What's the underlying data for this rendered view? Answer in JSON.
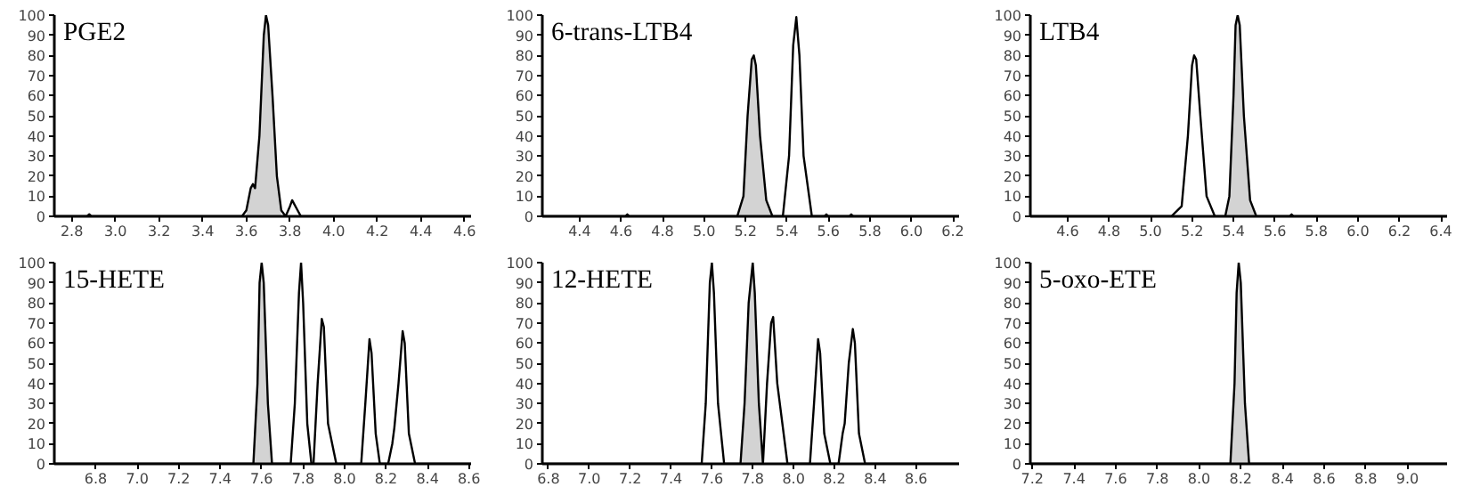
{
  "chart_data": [
    {
      "type": "line",
      "title": "PGE2",
      "xlim": [
        2.72,
        4.63
      ],
      "ylim": [
        0,
        100
      ],
      "grid": false,
      "marker": "none",
      "xticks": [
        2.8,
        {
          "value": 3,
          "label": "3.0"
        },
        3.2,
        3.4,
        3.6,
        3.8,
        {
          "value": 4,
          "label": "4.0"
        },
        4.2,
        4.4,
        4.6
      ],
      "yticks": [
        0,
        10,
        20,
        30,
        40,
        50,
        60,
        70,
        80,
        90,
        100
      ],
      "series": [
        {
          "type": "area",
          "color": "#d3d3d3",
          "x": [
            3.6,
            3.62,
            3.63,
            3.64,
            3.66,
            3.68,
            3.69,
            3.7,
            3.72,
            3.74,
            3.76
          ],
          "values": [
            3,
            14,
            16,
            14,
            40,
            90,
            100,
            95,
            60,
            20,
            3
          ]
        },
        {
          "color": "#000000",
          "x": [
            2.72,
            2.87,
            2.88,
            2.89,
            3.58,
            3.6,
            3.62,
            3.63,
            3.64,
            3.66,
            3.68,
            3.69,
            3.7,
            3.72,
            3.74,
            3.76,
            3.78,
            3.8,
            3.81,
            3.83,
            3.85,
            4.63
          ],
          "values": [
            0,
            0,
            1,
            0,
            0,
            3,
            14,
            16,
            14,
            40,
            90,
            100,
            95,
            60,
            20,
            3,
            0,
            5,
            8,
            4,
            0,
            0
          ]
        }
      ]
    },
    {
      "type": "line",
      "title": "6-trans-LTB4",
      "xlim": [
        4.22,
        6.23
      ],
      "ylim": [
        0,
        100
      ],
      "grid": false,
      "marker": "none",
      "xticks": [
        4.4,
        4.6,
        4.8,
        {
          "value": 5,
          "label": "5.0"
        },
        5.2,
        5.4,
        5.6,
        5.8,
        {
          "value": 6,
          "label": "6.0"
        },
        6.2
      ],
      "yticks": [
        0,
        10,
        20,
        30,
        40,
        50,
        60,
        70,
        80,
        90,
        100
      ],
      "series": [
        {
          "type": "area",
          "color": "#d3d3d3",
          "x": [
            5.16,
            5.19,
            5.21,
            5.23,
            5.24,
            5.25,
            5.27,
            5.3,
            5.33
          ],
          "values": [
            0,
            10,
            50,
            78,
            80,
            75,
            40,
            8,
            0
          ]
        },
        {
          "color": "#000000",
          "x": [
            4.22,
            4.62,
            4.63,
            4.64,
            5.16,
            5.19,
            5.21,
            5.23,
            5.24,
            5.25,
            5.27,
            5.3,
            5.33,
            5.38,
            5.41,
            5.43,
            5.445,
            5.46,
            5.48,
            5.52,
            5.58,
            5.59,
            5.6,
            5.7,
            5.71,
            5.72,
            6.23
          ],
          "values": [
            0,
            0,
            1,
            0,
            0,
            10,
            50,
            78,
            80,
            75,
            40,
            8,
            0,
            0,
            30,
            85,
            99,
            80,
            30,
            0,
            0,
            1,
            0,
            0,
            1,
            0,
            0
          ]
        }
      ]
    },
    {
      "type": "line",
      "title": "LTB4",
      "xlim": [
        4.42,
        6.43
      ],
      "ylim": [
        0,
        100
      ],
      "grid": false,
      "marker": "none",
      "xticks": [
        4.6,
        4.8,
        {
          "value": 5,
          "label": "5.0"
        },
        5.2,
        5.4,
        5.6,
        5.8,
        {
          "value": 6,
          "label": "6.0"
        },
        6.2,
        6.4
      ],
      "yticks": [
        0,
        10,
        20,
        30,
        40,
        50,
        60,
        70,
        80,
        90,
        100
      ],
      "series": [
        {
          "type": "area",
          "color": "#d3d3d3",
          "x": [
            5.36,
            5.38,
            5.4,
            5.41,
            5.42,
            5.43,
            5.45,
            5.48,
            5.51
          ],
          "values": [
            0,
            10,
            60,
            95,
            100,
            95,
            50,
            8,
            0
          ]
        },
        {
          "color": "#000000",
          "x": [
            4.42,
            5.1,
            5.15,
            5.18,
            5.2,
            5.21,
            5.22,
            5.24,
            5.27,
            5.31,
            5.36,
            5.38,
            5.4,
            5.41,
            5.42,
            5.43,
            5.45,
            5.48,
            5.51,
            5.67,
            5.68,
            5.69,
            6.43
          ],
          "values": [
            0,
            0,
            5,
            40,
            75,
            80,
            78,
            50,
            10,
            0,
            0,
            10,
            60,
            95,
            100,
            95,
            50,
            8,
            0,
            0,
            1,
            0,
            0
          ]
        }
      ]
    },
    {
      "type": "line",
      "title": "15-HETE",
      "xlim": [
        6.6,
        8.61
      ],
      "ylim": [
        0,
        100
      ],
      "grid": false,
      "marker": "none",
      "xticks": [
        6.8,
        {
          "value": 7,
          "label": "7.0"
        },
        7.2,
        7.4,
        7.6,
        7.8,
        {
          "value": 8,
          "label": "8.0"
        },
        8.2,
        8.4,
        8.6
      ],
      "yticks": [
        0,
        10,
        20,
        30,
        40,
        50,
        60,
        70,
        80,
        90,
        100
      ],
      "series": [
        {
          "type": "area",
          "color": "#d3d3d3",
          "x": [
            7.56,
            7.58,
            7.59,
            7.6,
            7.61,
            7.63,
            7.65
          ],
          "values": [
            0,
            40,
            90,
            100,
            90,
            30,
            0
          ]
        },
        {
          "color": "#000000",
          "x": [
            6.6,
            7.56,
            7.58,
            7.59,
            7.6,
            7.61,
            7.63,
            7.65,
            7.74,
            7.76,
            7.78,
            7.79,
            7.8,
            7.82,
            7.84,
            7.85,
            7.87,
            7.89,
            7.9,
            7.92,
            7.96,
            8.08,
            8.1,
            8.12,
            8.13,
            8.15,
            8.17,
            8.21,
            8.23,
            8.24,
            8.26,
            8.28,
            8.29,
            8.31,
            8.34,
            8.61
          ],
          "values": [
            0,
            0,
            40,
            90,
            100,
            90,
            30,
            0,
            0,
            30,
            85,
            100,
            80,
            20,
            0,
            0,
            40,
            72,
            68,
            20,
            0,
            0,
            30,
            62,
            55,
            15,
            0,
            0,
            10,
            18,
            40,
            66,
            60,
            15,
            0,
            0
          ]
        }
      ]
    },
    {
      "type": "line",
      "title": "12-HETE",
      "xlim": [
        6.77,
        8.81
      ],
      "ylim": [
        0,
        100
      ],
      "grid": false,
      "marker": "none",
      "xticks": [
        6.8,
        {
          "value": 7,
          "label": "7.0"
        },
        7.2,
        7.4,
        7.6,
        7.8,
        {
          "value": 8,
          "label": "8.0"
        },
        8.2,
        8.4,
        8.6
      ],
      "yticks": [
        0,
        10,
        20,
        30,
        40,
        50,
        60,
        70,
        80,
        90,
        100
      ],
      "series": [
        {
          "type": "area",
          "color": "#d3d3d3",
          "x": [
            7.74,
            7.76,
            7.78,
            7.8,
            7.81,
            7.83,
            7.85
          ],
          "values": [
            0,
            30,
            80,
            100,
            85,
            30,
            0
          ]
        },
        {
          "color": "#000000",
          "x": [
            6.77,
            7.55,
            7.57,
            7.59,
            7.6,
            7.61,
            7.63,
            7.66,
            7.74,
            7.76,
            7.78,
            7.8,
            7.81,
            7.83,
            7.85,
            7.87,
            7.89,
            7.9,
            7.92,
            7.97,
            8.08,
            8.1,
            8.12,
            8.13,
            8.15,
            8.18,
            8.22,
            8.24,
            8.25,
            8.27,
            8.29,
            8.3,
            8.32,
            8.35,
            8.81
          ],
          "values": [
            0,
            0,
            30,
            90,
            100,
            85,
            30,
            0,
            0,
            30,
            80,
            100,
            85,
            30,
            0,
            40,
            70,
            73,
            40,
            0,
            0,
            30,
            62,
            55,
            15,
            0,
            0,
            15,
            20,
            50,
            67,
            60,
            15,
            0,
            0
          ]
        }
      ]
    },
    {
      "type": "line",
      "title": "5-oxo-ETE",
      "xlim": [
        7.19,
        9.19
      ],
      "ylim": [
        0,
        100
      ],
      "grid": false,
      "marker": "none",
      "xticks": [
        7.2,
        7.4,
        7.6,
        7.8,
        {
          "value": 8,
          "label": "8.0"
        },
        8.2,
        8.4,
        8.6,
        8.8,
        {
          "value": 9,
          "label": "9.0"
        }
      ],
      "yticks": [
        0,
        10,
        20,
        30,
        40,
        50,
        60,
        70,
        80,
        90,
        100
      ],
      "series": [
        {
          "type": "area",
          "color": "#d3d3d3",
          "x": [
            8.15,
            8.17,
            8.18,
            8.19,
            8.2,
            8.22,
            8.24
          ],
          "values": [
            0,
            40,
            85,
            100,
            90,
            30,
            0
          ]
        },
        {
          "color": "#000000",
          "x": [
            7.19,
            8.15,
            8.17,
            8.18,
            8.19,
            8.2,
            8.22,
            8.24,
            9.19
          ],
          "values": [
            0,
            0,
            40,
            85,
            100,
            90,
            30,
            0,
            0
          ]
        }
      ]
    }
  ]
}
